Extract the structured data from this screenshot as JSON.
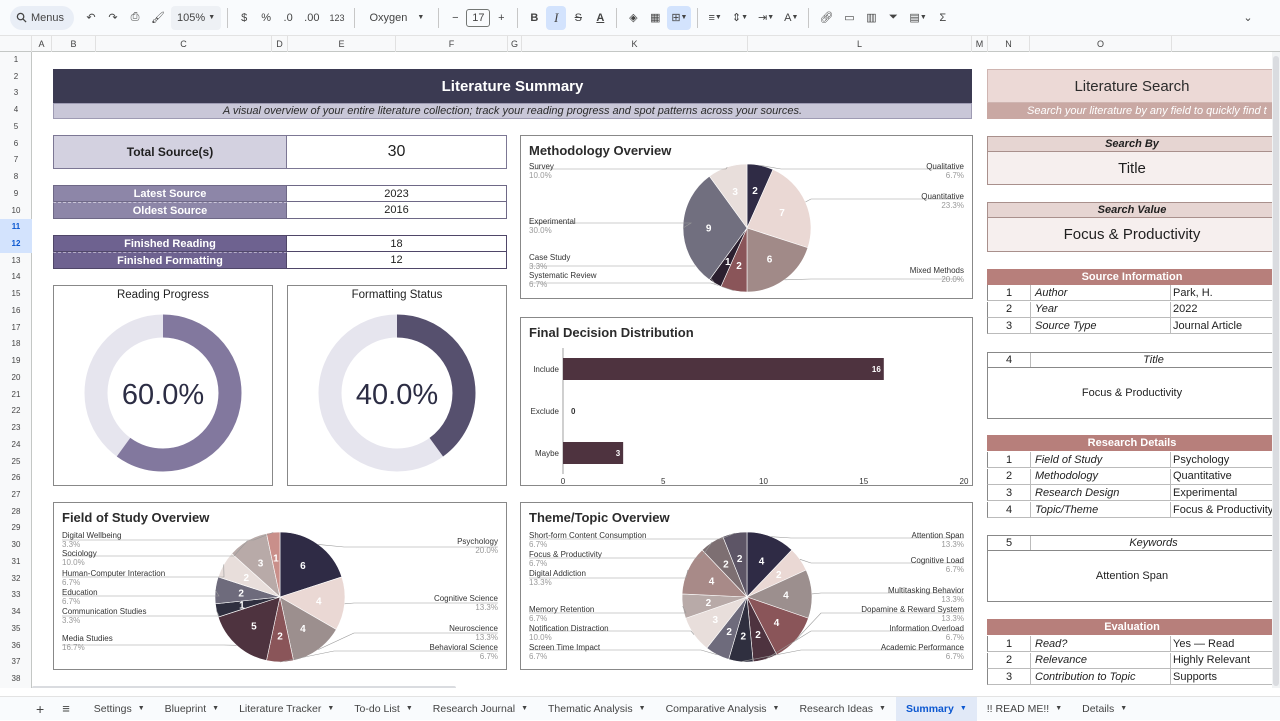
{
  "toolbar": {
    "menus": "Menus",
    "zoom": "105%",
    "currency": "$",
    "percent": "%",
    "dec_decrease": ".0",
    "dec_increase": ".00",
    "number_format": "123",
    "font": "Oxygen",
    "font_size": "17"
  },
  "columns": [
    "A",
    "B",
    "C",
    "D",
    "E",
    "F",
    "G",
    "K",
    "L",
    "M",
    "N",
    "O"
  ],
  "rows": [
    "1",
    "2",
    "3",
    "4",
    "5",
    "6",
    "7",
    "8",
    "9",
    "10",
    "11",
    "12",
    "13",
    "14",
    "15",
    "16",
    "17",
    "18",
    "19",
    "20",
    "21",
    "22",
    "23",
    "24",
    "25",
    "26",
    "27",
    "28",
    "29",
    "30",
    "31",
    "32",
    "33",
    "34",
    "35",
    "36",
    "37",
    "38"
  ],
  "summary": {
    "title": "Literature Summary",
    "subtitle": "A visual overview of your entire literature collection; track your reading progress and spot patterns across your sources.",
    "total_label": "Total Source(s)",
    "total_value": "30",
    "latest_label": "Latest Source",
    "latest_value": "2023",
    "oldest_label": "Oldest Source",
    "oldest_value": "2016",
    "finished_reading_label": "Finished Reading",
    "finished_reading_value": "18",
    "finished_formatting_label": "Finished Formatting",
    "finished_formatting_value": "12",
    "reading_progress_title": "Reading Progress",
    "reading_progress_value": "60.0%",
    "reading_progress_fraction": 0.6,
    "formatting_status_title": "Formatting Status",
    "formatting_status_value": "40.0%",
    "formatting_status_fraction": 0.4
  },
  "colors": {
    "header_dark": "#3b3a52",
    "header_sub": "#c9c7d8",
    "label_light": "#d3d1e0",
    "label_mid": "#8d86a8",
    "label_dark": "#6e6290",
    "progress_ring": "#82789e",
    "format_ring": "#56506e",
    "ring_track": "#e6e5ee",
    "bar": "#4e333f",
    "search_header": "#ecd9d6",
    "search_sub": "#c9a8a3",
    "search_section": "#b77f7b",
    "search_label_bg": "#e6d5d2",
    "search_value_bg": "#f6efee"
  },
  "methodology": {
    "title": "Methodology Overview",
    "slices": [
      {
        "name": "Qualitative",
        "pct": "6.7%",
        "value": 2,
        "color": "#2f2b45"
      },
      {
        "name": "Quantitative",
        "pct": "23.3%",
        "value": 7,
        "color": "#ead8d4"
      },
      {
        "name": "Mixed Methods",
        "pct": "20.0%",
        "value": 6,
        "color": "#a18a88"
      },
      {
        "name": "Systematic Review",
        "pct": "6.7%",
        "value": 2,
        "color": "#8a5559"
      },
      {
        "name": "Case Study",
        "pct": "3.3%",
        "value": 1,
        "color": "#2b1f2f"
      },
      {
        "name": "Experimental",
        "pct": "30.0%",
        "value": 9,
        "color": "#716f7f"
      },
      {
        "name": "Survey",
        "pct": "10.0%",
        "value": 3,
        "color": "#e8dedb"
      }
    ]
  },
  "decision": {
    "title": "Final Decision Distribution",
    "chart_data": {
      "type": "bar",
      "orientation": "horizontal",
      "categories": [
        "Include",
        "Exclude",
        "Maybe"
      ],
      "values": [
        16,
        0,
        3
      ],
      "xlim": [
        0,
        20
      ],
      "ticks": [
        "0",
        "5",
        "10",
        "15",
        "20"
      ],
      "grid": false
    }
  },
  "field": {
    "title": "Field of Study Overview",
    "slices": [
      {
        "name": "Psychology",
        "pct": "20.0%",
        "value": 6,
        "color": "#2f2b45"
      },
      {
        "name": "Cognitive Science",
        "pct": "13.3%",
        "value": 4,
        "color": "#ead8d4"
      },
      {
        "name": "Neuroscience",
        "pct": "13.3%",
        "value": 4,
        "color": "#9c8f8e"
      },
      {
        "name": "Behavioral Science",
        "pct": "6.7%",
        "value": 2,
        "color": "#8a5559"
      },
      {
        "name": "Media Studies",
        "pct": "16.7%",
        "value": 5,
        "color": "#4e333f"
      },
      {
        "name": "Communication Studies",
        "pct": "3.3%",
        "value": 1,
        "color": "#2f2f3f"
      },
      {
        "name": "Education",
        "pct": "6.7%",
        "value": 2,
        "color": "#6e6b7c"
      },
      {
        "name": "Human-Computer Interaction",
        "pct": "6.7%",
        "value": 2,
        "color": "#e8dedb"
      },
      {
        "name": "Sociology",
        "pct": "10.0%",
        "value": 3,
        "color": "#b8aaa8"
      },
      {
        "name": "Digital Wellbeing",
        "pct": "3.3%",
        "value": 1,
        "color": "#c98f8a"
      }
    ]
  },
  "theme": {
    "title": "Theme/Topic Overview",
    "slices": [
      {
        "name": "Attention Span",
        "pct": "13.3%",
        "value": 4,
        "color": "#2f2b45"
      },
      {
        "name": "Cognitive Load",
        "pct": "6.7%",
        "value": 2,
        "color": "#ead8d4"
      },
      {
        "name": "Multitasking Behavior",
        "pct": "13.3%",
        "value": 4,
        "color": "#9c8f8e"
      },
      {
        "name": "Dopamine & Reward System",
        "pct": "13.3%",
        "value": 4,
        "color": "#8a5559"
      },
      {
        "name": "Information Overload",
        "pct": "6.7%",
        "value": 2,
        "color": "#4e333f"
      },
      {
        "name": "Academic Performance",
        "pct": "6.7%",
        "value": 2,
        "color": "#2f2f3f"
      },
      {
        "name": "Screen Time Impact",
        "pct": "6.7%",
        "value": 2,
        "color": "#6e6b7c"
      },
      {
        "name": "Notification Distraction",
        "pct": "10.0%",
        "value": 3,
        "color": "#e8dedb"
      },
      {
        "name": "Memory Retention",
        "pct": "6.7%",
        "value": 2,
        "color": "#b8aaa8"
      },
      {
        "name": "Digital Addiction",
        "pct": "13.3%",
        "value": 4,
        "color": "#a88a88"
      },
      {
        "name": "Focus & Productivity",
        "pct": "6.7%",
        "value": 2,
        "color": "#7d6f72"
      },
      {
        "name": "Short-form Content Consumption",
        "pct": "6.7%",
        "value": 2,
        "color": "#5d5566"
      }
    ]
  },
  "search": {
    "title": "Literature Search",
    "subtitle": "Search your literature by any field to quickly find t",
    "search_by_label": "Search By",
    "search_by_value": "Title",
    "search_value_label": "Search Value",
    "search_value_value": "Focus & Productivity",
    "source_info_header": "Source Information",
    "source_info_rows": [
      {
        "n": "1",
        "label": "Author",
        "value": "Park, H."
      },
      {
        "n": "2",
        "label": "Year",
        "value": "2022"
      },
      {
        "n": "3",
        "label": "Source Type",
        "value": "Journal Article"
      }
    ],
    "title_row": {
      "n": "4",
      "label": "Title"
    },
    "title_value": "Focus & Productivity",
    "research_details_header": "Research Details",
    "research_rows": [
      {
        "n": "1",
        "label": "Field of Study",
        "value": "Psychology"
      },
      {
        "n": "2",
        "label": "Methodology",
        "value": "Quantitative"
      },
      {
        "n": "3",
        "label": "Research Design",
        "value": "Experimental"
      },
      {
        "n": "4",
        "label": "Topic/Theme",
        "value": "Focus & Productivity"
      }
    ],
    "keywords_row": {
      "n": "5",
      "label": "Keywords"
    },
    "keywords_value": "Attention Span",
    "evaluation_header": "Evaluation",
    "evaluation_rows": [
      {
        "n": "1",
        "label": "Read?",
        "value": "Yes — Read"
      },
      {
        "n": "2",
        "label": "Relevance",
        "value": "Highly Relevant"
      },
      {
        "n": "3",
        "label": "Contribution to Topic",
        "value": "Supports"
      }
    ]
  },
  "tabs": [
    {
      "label": "Settings"
    },
    {
      "label": "Blueprint"
    },
    {
      "label": "Literature Tracker"
    },
    {
      "label": "To-do List"
    },
    {
      "label": "Research Journal"
    },
    {
      "label": "Thematic Analysis"
    },
    {
      "label": "Comparative Analysis"
    },
    {
      "label": "Research Ideas"
    },
    {
      "label": "Summary",
      "active": true
    },
    {
      "label": "!! READ ME!!"
    },
    {
      "label": "Details"
    }
  ]
}
